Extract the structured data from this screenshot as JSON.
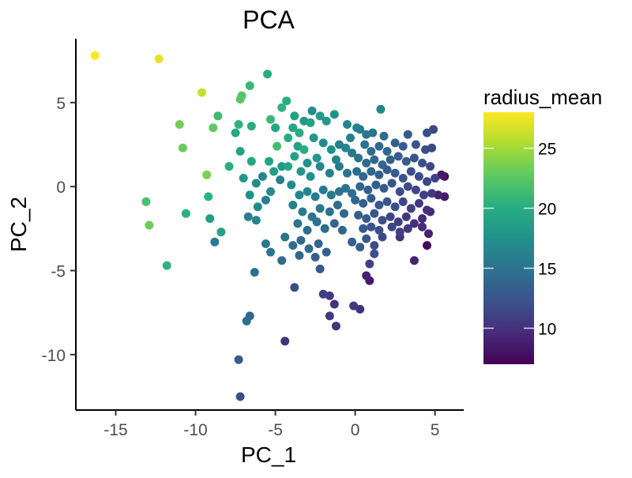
{
  "chart_data": {
    "type": "scatter",
    "title": "PCA",
    "xlabel": "PC_1",
    "ylabel": "PC_2",
    "xlim": [
      -17.5,
      6.8
    ],
    "ylim": [
      -13.3,
      8.8
    ],
    "xticks": [
      -15,
      -10,
      -5,
      0,
      5
    ],
    "yticks": [
      -10,
      -5,
      0,
      5
    ],
    "x_tick_labels": [
      "-15",
      "-10",
      "-5",
      "0",
      "5"
    ],
    "y_tick_labels": [
      "-10",
      "-5",
      "0",
      "5"
    ],
    "grid": false,
    "colorbar": {
      "title": "radius_mean",
      "range": [
        7,
        28
      ],
      "ticks": [
        10,
        15,
        20,
        25
      ],
      "tick_labels": [
        "10",
        "15",
        "20",
        "25"
      ],
      "colormap": "viridis"
    },
    "points": [
      {
        "x": -16.3,
        "y": 7.8,
        "c": 28.0
      },
      {
        "x": -12.3,
        "y": 7.6,
        "c": 27.2
      },
      {
        "x": -9.6,
        "y": 5.6,
        "c": 26.2
      },
      {
        "x": -11.0,
        "y": 3.7,
        "c": 23.5
      },
      {
        "x": -10.8,
        "y": 2.3,
        "c": 23.0
      },
      {
        "x": -13.1,
        "y": -0.9,
        "c": 21.8
      },
      {
        "x": -12.9,
        "y": -2.3,
        "c": 23.2
      },
      {
        "x": -11.8,
        "y": -4.7,
        "c": 20.5
      },
      {
        "x": -10.6,
        "y": -1.6,
        "c": 20.2
      },
      {
        "x": -9.3,
        "y": 0.7,
        "c": 23.8
      },
      {
        "x": -8.9,
        "y": 3.5,
        "c": 22.8
      },
      {
        "x": -8.6,
        "y": 4.2,
        "c": 21.3
      },
      {
        "x": -9.2,
        "y": -0.6,
        "c": 20.5
      },
      {
        "x": -9.1,
        "y": -1.9,
        "c": 18.5
      },
      {
        "x": -8.4,
        "y": -2.7,
        "c": 19.0
      },
      {
        "x": -8.8,
        "y": -3.3,
        "c": 15.5
      },
      {
        "x": -7.9,
        "y": 1.2,
        "c": 20.0
      },
      {
        "x": -7.1,
        "y": 5.4,
        "c": 22.0
      },
      {
        "x": -7.2,
        "y": 5.2,
        "c": 22.5
      },
      {
        "x": -6.6,
        "y": 6.0,
        "c": 21.0
      },
      {
        "x": -5.5,
        "y": 6.7,
        "c": 20.0
      },
      {
        "x": -7.3,
        "y": 3.7,
        "c": 20.5
      },
      {
        "x": -6.5,
        "y": 3.6,
        "c": 20.0
      },
      {
        "x": -7.5,
        "y": 3.2,
        "c": 19.5
      },
      {
        "x": -7.2,
        "y": 2.1,
        "c": 19.0
      },
      {
        "x": -6.5,
        "y": 1.5,
        "c": 19.5
      },
      {
        "x": -7.0,
        "y": 0.5,
        "c": 18.0
      },
      {
        "x": -6.2,
        "y": 0.2,
        "c": 17.0
      },
      {
        "x": -5.8,
        "y": 0.6,
        "c": 16.5
      },
      {
        "x": -5.3,
        "y": 4.0,
        "c": 21.0
      },
      {
        "x": -4.6,
        "y": 4.7,
        "c": 20.5
      },
      {
        "x": -4.3,
        "y": 5.1,
        "c": 20.0
      },
      {
        "x": -5.0,
        "y": 3.5,
        "c": 19.5
      },
      {
        "x": -4.9,
        "y": 2.4,
        "c": 21.5
      },
      {
        "x": -5.4,
        "y": 1.5,
        "c": 19.0
      },
      {
        "x": -5.1,
        "y": 0.9,
        "c": 18.5
      },
      {
        "x": -4.6,
        "y": 1.2,
        "c": 18.0
      },
      {
        "x": -4.7,
        "y": 0.4,
        "c": 16.0
      },
      {
        "x": -5.3,
        "y": -0.3,
        "c": 17.0
      },
      {
        "x": -5.6,
        "y": -0.8,
        "c": 16.0
      },
      {
        "x": -6.6,
        "y": -0.5,
        "c": 17.5
      },
      {
        "x": -6.1,
        "y": -1.2,
        "c": 17.0
      },
      {
        "x": -6.7,
        "y": -1.8,
        "c": 16.0
      },
      {
        "x": -6.2,
        "y": -2.0,
        "c": 16.5
      },
      {
        "x": -5.6,
        "y": -3.4,
        "c": 15.5
      },
      {
        "x": -5.3,
        "y": -3.9,
        "c": 15.0
      },
      {
        "x": -6.3,
        "y": -5.1,
        "c": 14.5
      },
      {
        "x": -3.8,
        "y": 4.2,
        "c": 19.0
      },
      {
        "x": -3.2,
        "y": 3.9,
        "c": 18.0
      },
      {
        "x": -2.8,
        "y": 3.8,
        "c": 19.0
      },
      {
        "x": -2.7,
        "y": 4.5,
        "c": 17.0
      },
      {
        "x": -2.2,
        "y": 4.2,
        "c": 18.5
      },
      {
        "x": -1.8,
        "y": 3.9,
        "c": 18.0
      },
      {
        "x": -1.3,
        "y": 4.3,
        "c": 17.5
      },
      {
        "x": -0.5,
        "y": 3.7,
        "c": 16.5
      },
      {
        "x": 0.1,
        "y": 3.5,
        "c": 16.0
      },
      {
        "x": -3.5,
        "y": 3.2,
        "c": 20.0
      },
      {
        "x": -3.9,
        "y": 3.5,
        "c": 19.5
      },
      {
        "x": -4.2,
        "y": 2.9,
        "c": 20.0
      },
      {
        "x": -3.6,
        "y": 2.4,
        "c": 19.0
      },
      {
        "x": -3.2,
        "y": 2.2,
        "c": 20.0
      },
      {
        "x": -2.6,
        "y": 2.9,
        "c": 18.0
      },
      {
        "x": -2.0,
        "y": 2.6,
        "c": 17.0
      },
      {
        "x": -1.5,
        "y": 2.2,
        "c": 17.5
      },
      {
        "x": -1.0,
        "y": 2.5,
        "c": 16.0
      },
      {
        "x": -0.6,
        "y": 2.3,
        "c": 16.5
      },
      {
        "x": -0.2,
        "y": 2.0,
        "c": 15.5
      },
      {
        "x": -0.3,
        "y": 2.9,
        "c": 16.0
      },
      {
        "x": -1.2,
        "y": 1.6,
        "c": 16.5
      },
      {
        "x": -2.4,
        "y": 1.7,
        "c": 18.0
      },
      {
        "x": -3.0,
        "y": 1.4,
        "c": 17.5
      },
      {
        "x": -3.8,
        "y": 1.8,
        "c": 19.0
      },
      {
        "x": -4.2,
        "y": 1.2,
        "c": 19.5
      },
      {
        "x": -3.4,
        "y": 0.9,
        "c": 18.0
      },
      {
        "x": -2.8,
        "y": 0.6,
        "c": 17.5
      },
      {
        "x": -2.2,
        "y": 1.2,
        "c": 16.5
      },
      {
        "x": -1.6,
        "y": 0.8,
        "c": 16.0
      },
      {
        "x": -1.0,
        "y": 1.2,
        "c": 15.5
      },
      {
        "x": -0.5,
        "y": 0.8,
        "c": 15.0
      },
      {
        "x": -4.0,
        "y": 0.1,
        "c": 17.0
      },
      {
        "x": -3.5,
        "y": -0.5,
        "c": 16.5
      },
      {
        "x": -3.9,
        "y": -1.1,
        "c": 16.0
      },
      {
        "x": -3.0,
        "y": -0.3,
        "c": 16.5
      },
      {
        "x": -2.5,
        "y": -0.6,
        "c": 16.0
      },
      {
        "x": -2.0,
        "y": -0.2,
        "c": 15.5
      },
      {
        "x": -1.5,
        "y": -0.5,
        "c": 15.5
      },
      {
        "x": -1.0,
        "y": -0.3,
        "c": 15.0
      },
      {
        "x": -0.6,
        "y": -0.1,
        "c": 15.0
      },
      {
        "x": -0.2,
        "y": -0.4,
        "c": 14.5
      },
      {
        "x": -3.3,
        "y": -1.5,
        "c": 15.5
      },
      {
        "x": -2.7,
        "y": -1.8,
        "c": 15.0
      },
      {
        "x": -2.2,
        "y": -1.3,
        "c": 15.5
      },
      {
        "x": -1.6,
        "y": -1.5,
        "c": 15.0
      },
      {
        "x": -1.1,
        "y": -1.1,
        "c": 14.5
      },
      {
        "x": -0.7,
        "y": -1.6,
        "c": 14.0
      },
      {
        "x": -3.6,
        "y": -2.2,
        "c": 15.0
      },
      {
        "x": -3.0,
        "y": -2.6,
        "c": 14.5
      },
      {
        "x": -2.4,
        "y": -2.1,
        "c": 15.0
      },
      {
        "x": -1.9,
        "y": -2.5,
        "c": 14.5
      },
      {
        "x": -1.3,
        "y": -2.2,
        "c": 14.0
      },
      {
        "x": -0.8,
        "y": -2.6,
        "c": 14.0
      },
      {
        "x": -4.4,
        "y": -3.0,
        "c": 15.0
      },
      {
        "x": -3.9,
        "y": -3.5,
        "c": 14.5
      },
      {
        "x": -3.4,
        "y": -3.2,
        "c": 14.0
      },
      {
        "x": -2.9,
        "y": -3.7,
        "c": 14.5
      },
      {
        "x": -2.3,
        "y": -3.4,
        "c": 14.0
      },
      {
        "x": -1.8,
        "y": -3.9,
        "c": 13.5
      },
      {
        "x": -4.6,
        "y": -4.4,
        "c": 14.5
      },
      {
        "x": -3.5,
        "y": -4.1,
        "c": 14.0
      },
      {
        "x": -2.5,
        "y": -4.2,
        "c": 13.5
      },
      {
        "x": -2.2,
        "y": -4.9,
        "c": 13.0
      },
      {
        "x": -3.8,
        "y": -6.0,
        "c": 12.0
      },
      {
        "x": -2.0,
        "y": -6.4,
        "c": 11.0
      },
      {
        "x": -1.6,
        "y": -6.5,
        "c": 10.5
      },
      {
        "x": -1.3,
        "y": -7.0,
        "c": 10.0
      },
      {
        "x": -1.6,
        "y": -7.7,
        "c": 10.5
      },
      {
        "x": -1.2,
        "y": -8.3,
        "c": 10.0
      },
      {
        "x": -0.1,
        "y": -7.1,
        "c": 10.5
      },
      {
        "x": 0.3,
        "y": -7.3,
        "c": 10.0
      },
      {
        "x": -4.4,
        "y": -9.2,
        "c": 10.0
      },
      {
        "x": -6.6,
        "y": -7.7,
        "c": 14.0
      },
      {
        "x": -6.8,
        "y": -8.0,
        "c": 14.5
      },
      {
        "x": -7.3,
        "y": -10.3,
        "c": 13.0
      },
      {
        "x": -7.2,
        "y": -12.5,
        "c": 12.0
      },
      {
        "x": 0.3,
        "y": 3.4,
        "c": 16.0
      },
      {
        "x": 0.7,
        "y": 3.1,
        "c": 15.5
      },
      {
        "x": 1.1,
        "y": 3.2,
        "c": 15.0
      },
      {
        "x": 1.6,
        "y": 4.6,
        "c": 16.5
      },
      {
        "x": 1.8,
        "y": 3.0,
        "c": 14.5
      },
      {
        "x": 0.6,
        "y": 2.5,
        "c": 15.0
      },
      {
        "x": 1.0,
        "y": 2.1,
        "c": 14.5
      },
      {
        "x": 1.5,
        "y": 2.4,
        "c": 14.0
      },
      {
        "x": 2.0,
        "y": 2.1,
        "c": 14.0
      },
      {
        "x": 2.5,
        "y": 2.6,
        "c": 13.5
      },
      {
        "x": 3.0,
        "y": 2.4,
        "c": 13.0
      },
      {
        "x": 3.3,
        "y": 3.1,
        "c": 13.0
      },
      {
        "x": 3.8,
        "y": 2.5,
        "c": 12.5
      },
      {
        "x": 4.5,
        "y": 3.2,
        "c": 12.0
      },
      {
        "x": 4.9,
        "y": 3.4,
        "c": 11.5
      },
      {
        "x": 4.4,
        "y": 2.2,
        "c": 12.0
      },
      {
        "x": 4.8,
        "y": 2.3,
        "c": 11.5
      },
      {
        "x": 0.2,
        "y": 1.7,
        "c": 15.0
      },
      {
        "x": 0.7,
        "y": 1.4,
        "c": 14.5
      },
      {
        "x": 1.2,
        "y": 1.6,
        "c": 14.0
      },
      {
        "x": 1.7,
        "y": 1.3,
        "c": 14.0
      },
      {
        "x": 2.2,
        "y": 1.6,
        "c": 13.5
      },
      {
        "x": 2.7,
        "y": 1.8,
        "c": 13.0
      },
      {
        "x": 3.2,
        "y": 1.5,
        "c": 13.0
      },
      {
        "x": 3.7,
        "y": 1.7,
        "c": 12.5
      },
      {
        "x": 4.2,
        "y": 1.4,
        "c": 12.0
      },
      {
        "x": 4.7,
        "y": 1.2,
        "c": 11.5
      },
      {
        "x": 0.1,
        "y": 0.9,
        "c": 14.5
      },
      {
        "x": 0.5,
        "y": 0.6,
        "c": 14.0
      },
      {
        "x": 1.0,
        "y": 0.9,
        "c": 14.0
      },
      {
        "x": 1.5,
        "y": 0.7,
        "c": 13.5
      },
      {
        "x": 2.0,
        "y": 1.0,
        "c": 13.0
      },
      {
        "x": 2.5,
        "y": 0.8,
        "c": 13.0
      },
      {
        "x": 3.0,
        "y": 0.5,
        "c": 12.5
      },
      {
        "x": 3.5,
        "y": 0.9,
        "c": 12.0
      },
      {
        "x": 4.0,
        "y": 0.6,
        "c": 12.0
      },
      {
        "x": 4.5,
        "y": 0.3,
        "c": 11.5
      },
      {
        "x": 5.0,
        "y": 0.5,
        "c": 11.0
      },
      {
        "x": 5.4,
        "y": 0.7,
        "c": 8.5
      },
      {
        "x": 5.6,
        "y": 0.6,
        "c": 8.0
      },
      {
        "x": 0.3,
        "y": 0.0,
        "c": 14.0
      },
      {
        "x": 0.8,
        "y": -0.2,
        "c": 13.5
      },
      {
        "x": 1.3,
        "y": 0.1,
        "c": 13.5
      },
      {
        "x": 1.8,
        "y": -0.1,
        "c": 13.0
      },
      {
        "x": 2.3,
        "y": 0.2,
        "c": 12.5
      },
      {
        "x": 2.8,
        "y": -0.3,
        "c": 12.0
      },
      {
        "x": 3.3,
        "y": 0.0,
        "c": 12.0
      },
      {
        "x": 3.8,
        "y": -0.2,
        "c": 11.5
      },
      {
        "x": 4.3,
        "y": -0.5,
        "c": 11.0
      },
      {
        "x": 4.8,
        "y": -0.4,
        "c": 10.5
      },
      {
        "x": 5.2,
        "y": -0.5,
        "c": 9.0
      },
      {
        "x": 5.6,
        "y": -0.6,
        "c": 8.5
      },
      {
        "x": 0.0,
        "y": -0.8,
        "c": 14.0
      },
      {
        "x": 0.5,
        "y": -1.0,
        "c": 13.5
      },
      {
        "x": 1.0,
        "y": -0.7,
        "c": 13.0
      },
      {
        "x": 1.5,
        "y": -1.1,
        "c": 12.5
      },
      {
        "x": 2.0,
        "y": -0.9,
        "c": 12.5
      },
      {
        "x": 2.5,
        "y": -1.2,
        "c": 12.0
      },
      {
        "x": 3.0,
        "y": -0.9,
        "c": 11.5
      },
      {
        "x": 3.5,
        "y": -1.3,
        "c": 11.0
      },
      {
        "x": 4.0,
        "y": -1.0,
        "c": 10.5
      },
      {
        "x": 4.5,
        "y": -1.4,
        "c": 10.0
      },
      {
        "x": 4.7,
        "y": -1.5,
        "c": 9.5
      },
      {
        "x": 0.2,
        "y": -1.7,
        "c": 13.5
      },
      {
        "x": 0.7,
        "y": -1.9,
        "c": 13.0
      },
      {
        "x": 1.2,
        "y": -1.6,
        "c": 12.5
      },
      {
        "x": 1.7,
        "y": -2.0,
        "c": 12.0
      },
      {
        "x": 2.2,
        "y": -1.8,
        "c": 11.5
      },
      {
        "x": 2.7,
        "y": -2.1,
        "c": 11.0
      },
      {
        "x": 3.2,
        "y": -1.8,
        "c": 10.5
      },
      {
        "x": 3.7,
        "y": -2.2,
        "c": 10.0
      },
      {
        "x": 4.2,
        "y": -1.9,
        "c": 9.5
      },
      {
        "x": 0.5,
        "y": -2.5,
        "c": 13.0
      },
      {
        "x": 1.0,
        "y": -2.4,
        "c": 12.5
      },
      {
        "x": 1.5,
        "y": -2.6,
        "c": 12.0
      },
      {
        "x": 2.3,
        "y": -2.4,
        "c": 11.5
      },
      {
        "x": 2.8,
        "y": -2.7,
        "c": 11.0
      },
      {
        "x": 3.3,
        "y": -2.5,
        "c": 10.5
      },
      {
        "x": 4.2,
        "y": -2.4,
        "c": 9.5
      },
      {
        "x": -0.2,
        "y": -3.3,
        "c": 13.5
      },
      {
        "x": 0.3,
        "y": -3.6,
        "c": 13.0
      },
      {
        "x": 0.7,
        "y": -3.1,
        "c": 12.5
      },
      {
        "x": 1.2,
        "y": -3.5,
        "c": 12.0
      },
      {
        "x": 1.7,
        "y": -3.0,
        "c": 11.5
      },
      {
        "x": 1.2,
        "y": -4.0,
        "c": 12.0
      },
      {
        "x": 0.9,
        "y": -4.6,
        "c": 11.0
      },
      {
        "x": 0.7,
        "y": -5.3,
        "c": 9.0
      },
      {
        "x": 0.9,
        "y": -5.6,
        "c": 8.5
      },
      {
        "x": 3.7,
        "y": -4.4,
        "c": 9.0
      },
      {
        "x": 4.5,
        "y": -3.5,
        "c": 7.5
      },
      {
        "x": 2.8,
        "y": -3.0,
        "c": 10.0
      },
      {
        "x": 4.6,
        "y": -2.8,
        "c": 9.0
      }
    ]
  }
}
